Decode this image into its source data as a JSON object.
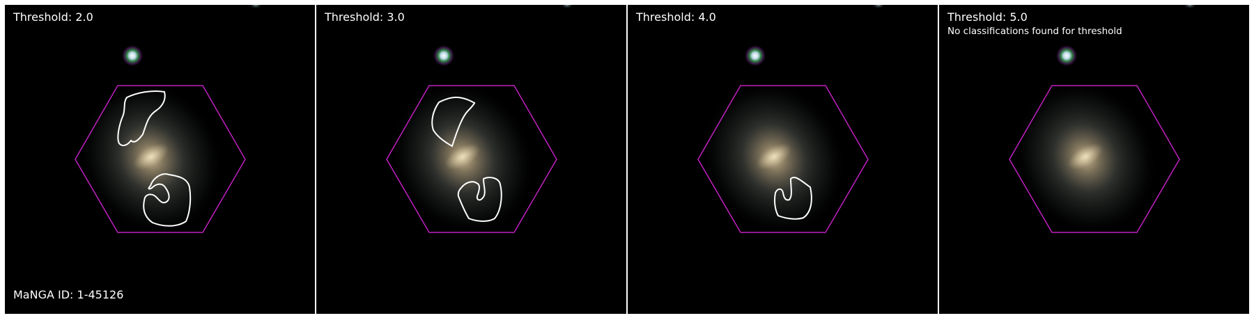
{
  "galaxy": {
    "manga_id_label": "MaNGA ID: 1-45126"
  },
  "panels": [
    {
      "title": "Threshold: 2.0",
      "note": "",
      "regions": 2
    },
    {
      "title": "Threshold: 3.0",
      "note": "",
      "regions": 2
    },
    {
      "title": "Threshold: 4.0",
      "note": "",
      "regions": 1
    },
    {
      "title": "Threshold: 5.0",
      "note": "No classifications found for threshold",
      "regions": 0
    }
  ],
  "colors": {
    "background": "#000000",
    "hexagon": "#c020c0",
    "contour": "#ffffff",
    "separator": "#ffffff"
  }
}
